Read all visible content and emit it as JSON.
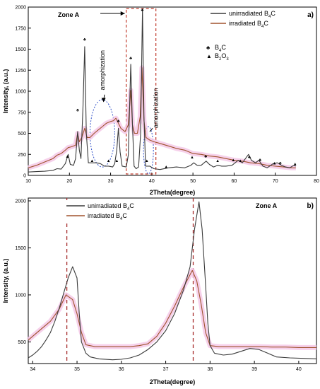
{
  "colors": {
    "unirradiated": "#3a3a3a",
    "irradiated": "#a0522d",
    "noise_band": "#f4c6e6",
    "zone_box": "#c0392b",
    "dashed_line": "#a52a2a",
    "ellipse": "#3050c8"
  },
  "symbols": {
    "b4c": "♣",
    "b2o3": "▲"
  },
  "chart_data": [
    {
      "type": "line",
      "panel_label": "a)",
      "zone_label": "Zone A",
      "xlabel": "2Theta(degree)",
      "ylabel": "Intensity, (a.u.)",
      "xlim": [
        10,
        80
      ],
      "ylim": [
        0,
        2000
      ],
      "xticks": [
        "10",
        "20",
        "30",
        "40",
        "50",
        "60",
        "70",
        "80"
      ],
      "yticks": [
        "0",
        "250",
        "500",
        "750",
        "1000",
        "1250",
        "1500",
        "1750",
        "2000"
      ],
      "legend_position": "top-right",
      "legend": [
        {
          "label": "unirradiated B",
          "sub": "4",
          "after": "C",
          "series": "unirradiated"
        },
        {
          "label": "irradiated B",
          "sub": "4",
          "after": "C",
          "series": "irradiated"
        }
      ],
      "symbol_legend": [
        {
          "symbol": "b4c",
          "label": "B",
          "sub": "4",
          "after": "C"
        },
        {
          "symbol": "b2o3",
          "label": "B",
          "sub": "2",
          "after": "O",
          "sub2": "3"
        }
      ],
      "annotations": [
        {
          "text": "amorphization",
          "x": 28.5,
          "y": 1250
        },
        {
          "text": "amorphization",
          "x": 41.5,
          "y": 800
        }
      ],
      "ellipses": [
        {
          "cx": 28.0,
          "cy": 500,
          "rx": 3.0,
          "ry": 400
        },
        {
          "cx": 39.2,
          "cy": 300,
          "rx": 1.2,
          "ry": 280
        }
      ],
      "zone_box": {
        "x0": 33.8,
        "x1": 41.0
      },
      "series": [
        {
          "name": "unirradiated B4C",
          "key": "unirradiated",
          "points": [
            [
              10,
              40
            ],
            [
              12,
              45
            ],
            [
              14,
              50
            ],
            [
              16,
              60
            ],
            [
              17,
              80
            ],
            [
              18,
              75
            ],
            [
              19,
              140
            ],
            [
              19.7,
              250
            ],
            [
              20.2,
              130
            ],
            [
              21,
              120
            ],
            [
              21.5,
              200
            ],
            [
              22,
              520
            ],
            [
              22.4,
              300
            ],
            [
              22.8,
              200
            ],
            [
              23.3,
              820
            ],
            [
              23.7,
              1530
            ],
            [
              24.1,
              500
            ],
            [
              24.6,
              150
            ],
            [
              25.5,
              150
            ],
            [
              26.5,
              150
            ],
            [
              27.5,
              140
            ],
            [
              28.5,
              110
            ],
            [
              29.5,
              110
            ],
            [
              30.5,
              100
            ],
            [
              31,
              140
            ],
            [
              31.5,
              300
            ],
            [
              31.9,
              560
            ],
            [
              32.3,
              280
            ],
            [
              32.8,
              110
            ],
            [
              33.8,
              100
            ],
            [
              34.3,
              240
            ],
            [
              34.9,
              1320
            ],
            [
              35.3,
              600
            ],
            [
              35.7,
              110
            ],
            [
              36.2,
              80
            ],
            [
              36.8,
              100
            ],
            [
              37.3,
              500
            ],
            [
              37.75,
              1980
            ],
            [
              38.1,
              700
            ],
            [
              38.5,
              110
            ],
            [
              39,
              110
            ],
            [
              39.5,
              110
            ],
            [
              40.5,
              80
            ],
            [
              42,
              70
            ],
            [
              44,
              90
            ],
            [
              46,
              100
            ],
            [
              48,
              90
            ],
            [
              49.5,
              120
            ],
            [
              50.2,
              150
            ],
            [
              51,
              120
            ],
            [
              52,
              120
            ],
            [
              53.2,
              170
            ],
            [
              54,
              130
            ],
            [
              55,
              100
            ],
            [
              56,
              120
            ],
            [
              57,
              110
            ],
            [
              58,
              110
            ],
            [
              59.5,
              120
            ],
            [
              61,
              180
            ],
            [
              62,
              150
            ],
            [
              63.5,
              250
            ],
            [
              64.2,
              180
            ],
            [
              65.2,
              150
            ],
            [
              66,
              180
            ],
            [
              67,
              110
            ],
            [
              68,
              90
            ],
            [
              69.5,
              140
            ],
            [
              70.5,
              150
            ],
            [
              71.5,
              120
            ],
            [
              72.5,
              100
            ],
            [
              73.5,
              90
            ],
            [
              74.5,
              120
            ],
            [
              75,
              110
            ]
          ]
        },
        {
          "name": "irradiated B4C",
          "key": "irradiated",
          "points": [
            [
              10,
              90
            ],
            [
              12,
              120
            ],
            [
              14,
              160
            ],
            [
              16,
              200
            ],
            [
              17,
              240
            ],
            [
              18,
              260
            ],
            [
              19,
              300
            ],
            [
              19.7,
              330
            ],
            [
              20.5,
              340
            ],
            [
              21.5,
              360
            ],
            [
              22,
              500
            ],
            [
              22.4,
              400
            ],
            [
              23,
              450
            ],
            [
              23.7,
              560
            ],
            [
              24.3,
              450
            ],
            [
              25,
              450
            ],
            [
              26,
              500
            ],
            [
              27,
              540
            ],
            [
              28,
              580
            ],
            [
              29,
              620
            ],
            [
              30,
              640
            ],
            [
              30.7,
              650
            ],
            [
              31.3,
              680
            ],
            [
              31.9,
              620
            ],
            [
              32.5,
              560
            ],
            [
              33.5,
              520
            ],
            [
              34.3,
              600
            ],
            [
              34.9,
              1010
            ],
            [
              35.3,
              600
            ],
            [
              35.8,
              500
            ],
            [
              36.5,
              500
            ],
            [
              37.2,
              700
            ],
            [
              37.6,
              1280
            ],
            [
              38.1,
              650
            ],
            [
              38.6,
              450
            ],
            [
              39.5,
              420
            ],
            [
              40.5,
              400
            ],
            [
              42,
              380
            ],
            [
              44,
              350
            ],
            [
              46,
              320
            ],
            [
              48,
              300
            ],
            [
              50,
              260
            ],
            [
              52,
              250
            ],
            [
              54,
              230
            ],
            [
              56,
              220
            ],
            [
              58,
              200
            ],
            [
              60,
              180
            ],
            [
              62,
              170
            ],
            [
              64,
              150
            ],
            [
              66,
              140
            ],
            [
              68,
              120
            ],
            [
              70,
              110
            ],
            [
              72,
              100
            ],
            [
              74,
              90
            ],
            [
              75,
              90
            ]
          ]
        }
      ],
      "markers": [
        {
          "x": 19.5,
          "y": 210,
          "symbol": "b2o3"
        },
        {
          "x": 22.0,
          "y": 760,
          "symbol": "b4c"
        },
        {
          "x": 23.7,
          "y": 1600,
          "symbol": "b4c"
        },
        {
          "x": 25.5,
          "y": 160,
          "symbol": "b2o3"
        },
        {
          "x": 29.5,
          "y": 160,
          "symbol": "b2o3"
        },
        {
          "x": 31.5,
          "y": 160,
          "symbol": "b2o3"
        },
        {
          "x": 31.9,
          "y": 630,
          "symbol": "b4c"
        },
        {
          "x": 34.9,
          "y": 1380,
          "symbol": "b4c"
        },
        {
          "x": 37.7,
          "y": 1950,
          "symbol": "b4c"
        },
        {
          "x": 38.8,
          "y": 160,
          "symbol": "b2o3"
        },
        {
          "x": 43.5,
          "y": 90,
          "symbol": "b2o3"
        },
        {
          "x": 49.8,
          "y": 200,
          "symbol": "b2o3"
        },
        {
          "x": 53.1,
          "y": 210,
          "symbol": "b4c"
        },
        {
          "x": 56.0,
          "y": 160,
          "symbol": "b2o3"
        },
        {
          "x": 59.8,
          "y": 170,
          "symbol": "b2o3"
        },
        {
          "x": 61.5,
          "y": 160,
          "symbol": "b2o3"
        },
        {
          "x": 63.7,
          "y": 200,
          "symbol": "b4c"
        },
        {
          "x": 66.3,
          "y": 170,
          "symbol": "b4c"
        },
        {
          "x": 69.8,
          "y": 130,
          "symbol": "b2o3"
        },
        {
          "x": 71.2,
          "y": 130,
          "symbol": "b4c"
        },
        {
          "x": 74.8,
          "y": 120,
          "symbol": "b2o3"
        }
      ]
    },
    {
      "type": "line",
      "panel_label": "b)",
      "zone_label": "Zone A",
      "xlabel": "2Theta(degree)",
      "ylabel": "Intensity, (a.u.)",
      "xlim": [
        33.9,
        40.4
      ],
      "ylim": [
        270,
        2030
      ],
      "xticks": [
        "34",
        "35",
        "36",
        "37",
        "38",
        "39",
        "40"
      ],
      "yticks": [
        "500",
        "1000",
        "1500",
        "2000"
      ],
      "legend_position": "top-left",
      "legend": [
        {
          "label": "unirradiated B",
          "sub": "4",
          "after": "C",
          "series": "unirradiated"
        },
        {
          "label": "irradiated B",
          "sub": "4",
          "after": "C",
          "series": "irradiated"
        }
      ],
      "vlines": [
        34.77,
        37.62
      ],
      "series": [
        {
          "name": "unirradiated B4C",
          "key": "unirradiated",
          "points": [
            [
              33.9,
              330
            ],
            [
              34.0,
              360
            ],
            [
              34.1,
              400
            ],
            [
              34.2,
              450
            ],
            [
              34.3,
              520
            ],
            [
              34.4,
              600
            ],
            [
              34.5,
              720
            ],
            [
              34.6,
              860
            ],
            [
              34.7,
              1020
            ],
            [
              34.8,
              1180
            ],
            [
              34.9,
              1300
            ],
            [
              35.0,
              1180
            ],
            [
              35.05,
              800
            ],
            [
              35.1,
              500
            ],
            [
              35.2,
              380
            ],
            [
              35.3,
              340
            ],
            [
              35.5,
              320
            ],
            [
              35.8,
              310
            ],
            [
              36.0,
              315
            ],
            [
              36.2,
              330
            ],
            [
              36.4,
              360
            ],
            [
              36.6,
              420
            ],
            [
              36.8,
              500
            ],
            [
              37.0,
              620
            ],
            [
              37.2,
              800
            ],
            [
              37.4,
              1050
            ],
            [
              37.55,
              1300
            ],
            [
              37.65,
              1700
            ],
            [
              37.75,
              1990
            ],
            [
              37.82,
              1700
            ],
            [
              37.9,
              1100
            ],
            [
              37.95,
              700
            ],
            [
              38.0,
              460
            ],
            [
              38.1,
              380
            ],
            [
              38.3,
              360
            ],
            [
              38.5,
              370
            ],
            [
              38.7,
              400
            ],
            [
              38.9,
              430
            ],
            [
              39.1,
              420
            ],
            [
              39.3,
              380
            ],
            [
              39.5,
              340
            ],
            [
              39.8,
              330
            ],
            [
              40.1,
              325
            ],
            [
              40.4,
              320
            ]
          ]
        },
        {
          "name": "irradiated B4C",
          "key": "irradiated",
          "points": [
            [
              33.9,
              520
            ],
            [
              34.0,
              560
            ],
            [
              34.2,
              640
            ],
            [
              34.4,
              720
            ],
            [
              34.6,
              850
            ],
            [
              34.75,
              1000
            ],
            [
              34.9,
              950
            ],
            [
              35.0,
              800
            ],
            [
              35.1,
              600
            ],
            [
              35.2,
              470
            ],
            [
              35.4,
              450
            ],
            [
              35.6,
              450
            ],
            [
              35.8,
              450
            ],
            [
              36.0,
              450
            ],
            [
              36.2,
              450
            ],
            [
              36.4,
              460
            ],
            [
              36.6,
              480
            ],
            [
              36.8,
              560
            ],
            [
              37.0,
              700
            ],
            [
              37.2,
              880
            ],
            [
              37.4,
              1080
            ],
            [
              37.6,
              1260
            ],
            [
              37.7,
              1150
            ],
            [
              37.8,
              900
            ],
            [
              37.9,
              600
            ],
            [
              38.0,
              460
            ],
            [
              38.2,
              450
            ],
            [
              38.5,
              450
            ],
            [
              38.8,
              450
            ],
            [
              39.1,
              450
            ],
            [
              39.4,
              445
            ],
            [
              39.7,
              445
            ],
            [
              40.0,
              440
            ],
            [
              40.4,
              440
            ]
          ]
        }
      ]
    }
  ]
}
